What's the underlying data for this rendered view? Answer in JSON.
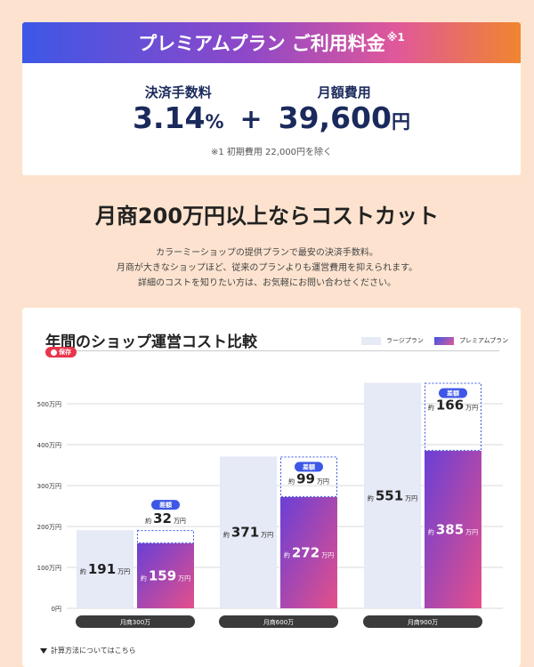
{
  "pricing": {
    "title": "プレミアムプラン ご利用料金",
    "title_sup": "※1",
    "fee_label": "決済手数料",
    "fee_value": "3.14",
    "fee_unit": "%",
    "plus": "+",
    "monthly_label": "月額費用",
    "monthly_value": "39,600",
    "monthly_unit": "円",
    "note": "※1 初期費用 22,000円を除く"
  },
  "headline": "月商200万円以上ならコストカット",
  "description": [
    "カラーミーショップの提供プランで最安の決済手数料。",
    "月商が大きなショップほど、従来のプランよりも運営費用を抑えられます。",
    "詳細のコストを知りたい方は、お気軽にお問い合わせください。"
  ],
  "chart_card": {
    "title": "年間のショップ運営コスト比較",
    "save_label": "保存",
    "legend": [
      "ラージプラン",
      "プレミアムプラン"
    ],
    "calc_link": "計算方法についてはこちら"
  },
  "chart_data": {
    "type": "bar",
    "categories": [
      "月商300万",
      "月商600万",
      "月商900万"
    ],
    "series": [
      {
        "name": "ラージプラン",
        "values": [
          191,
          371,
          551
        ]
      },
      {
        "name": "プレミアムプラン",
        "values": [
          159,
          272,
          385
        ]
      }
    ],
    "differences": [
      32,
      99,
      166
    ],
    "diff_label": "差額",
    "value_prefix": "約",
    "value_unit": "万円",
    "ytick_labels": [
      "0円",
      "100万円",
      "200万円",
      "300万円",
      "400万円",
      "500万円"
    ],
    "yticks": [
      0,
      100,
      200,
      300,
      400,
      500
    ],
    "ylim": [
      0,
      600
    ],
    "colors": {
      "large": "#e6e9f6",
      "premium_top": "#6a3fd6",
      "premium_bottom": "#e4508a",
      "diff_border": "#3d57e6",
      "diff_badge": "#3d57e6",
      "category_pill": "#3b3b3b"
    }
  }
}
